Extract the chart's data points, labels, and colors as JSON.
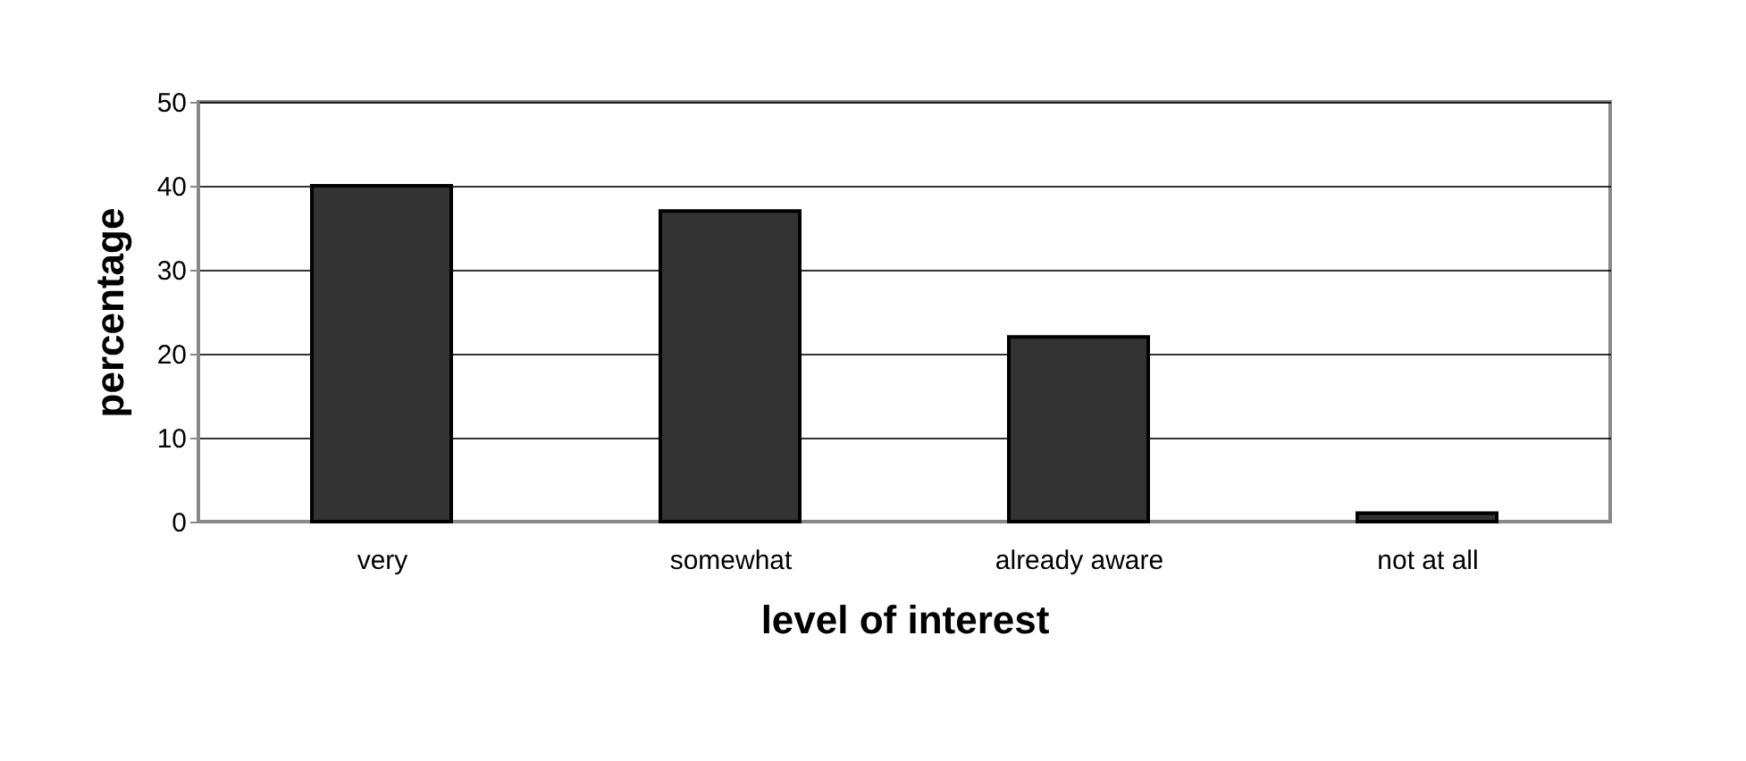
{
  "chart_data": {
    "type": "bar",
    "xlabel": "level of interest",
    "ylabel": "percentage",
    "categories": [
      "very",
      "somewhat",
      "already aware",
      "not at all"
    ],
    "values": [
      40,
      37,
      22,
      1
    ],
    "color": "#333333",
    "ylim": [
      0,
      50
    ],
    "yticks": [
      0,
      10,
      20,
      30,
      40,
      50
    ],
    "grid": "y"
  }
}
